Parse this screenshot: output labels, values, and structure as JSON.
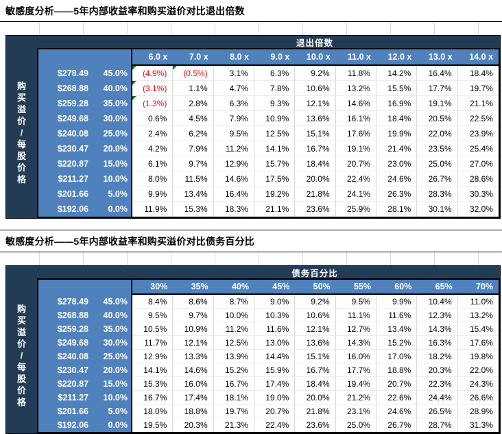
{
  "colors": {
    "navy": "#233C55",
    "blue": "#4F81BD",
    "negative_text": "#FF0000",
    "flag_green": "#1B7A1B",
    "gridline": "#D9D9D9",
    "border": "#000000"
  },
  "side_label": "购买溢价/每股价格",
  "tables": [
    {
      "title": "敏感度分析——5年内部收益率和购买溢价对比退出倍数",
      "band_label": "退出倍数",
      "col_headers": [
        "6.0 x",
        "7.0 x",
        "8.0 x",
        "9.0 x",
        "10.0 x",
        "11.0 x",
        "12.0 x",
        "13.0 x",
        "14.0 x"
      ],
      "rows": [
        {
          "price": "$278.49",
          "premium": "45.0%",
          "values": [
            "(4.9%)",
            "(0.5%)",
            "3.1%",
            "6.3%",
            "9.2%",
            "11.8%",
            "14.2%",
            "16.4%",
            "18.4%"
          ]
        },
        {
          "price": "$268.88",
          "premium": "40.0%",
          "values": [
            "(3.1%)",
            "1.1%",
            "4.7%",
            "7.8%",
            "10.6%",
            "13.2%",
            "15.5%",
            "17.7%",
            "19.7%"
          ]
        },
        {
          "price": "$259.28",
          "premium": "35.0%",
          "values": [
            "(1.3%)",
            "2.8%",
            "6.3%",
            "9.3%",
            "12.1%",
            "14.6%",
            "16.9%",
            "19.1%",
            "21.1%"
          ]
        },
        {
          "price": "$249.68",
          "premium": "30.0%",
          "values": [
            "0.6%",
            "4.5%",
            "7.9%",
            "10.9%",
            "13.6%",
            "16.1%",
            "18.4%",
            "20.5%",
            "22.5%"
          ]
        },
        {
          "price": "$240.08",
          "premium": "25.0%",
          "values": [
            "2.4%",
            "6.2%",
            "9.5%",
            "12.5%",
            "15.1%",
            "17.6%",
            "19.9%",
            "22.0%",
            "23.9%"
          ]
        },
        {
          "price": "$230.47",
          "premium": "20.0%",
          "values": [
            "4.2%",
            "7.9%",
            "11.2%",
            "14.1%",
            "16.7%",
            "19.1%",
            "21.4%",
            "23.5%",
            "25.4%"
          ]
        },
        {
          "price": "$220.87",
          "premium": "15.0%",
          "values": [
            "6.1%",
            "9.7%",
            "12.9%",
            "15.7%",
            "18.4%",
            "20.7%",
            "23.0%",
            "25.0%",
            "27.0%"
          ]
        },
        {
          "price": "$211.27",
          "premium": "10.0%",
          "values": [
            "8.0%",
            "11.5%",
            "14.6%",
            "17.5%",
            "20.0%",
            "22.4%",
            "24.6%",
            "26.7%",
            "28.6%"
          ]
        },
        {
          "price": "$201.66",
          "premium": "5.0%",
          "values": [
            "9.9%",
            "13.4%",
            "16.4%",
            "19.2%",
            "21.8%",
            "24.1%",
            "26.3%",
            "28.3%",
            "30.3%"
          ]
        },
        {
          "price": "$192.06",
          "premium": "0.0%",
          "values": [
            "11.9%",
            "15.3%",
            "18.3%",
            "21.1%",
            "23.6%",
            "25.9%",
            "28.1%",
            "30.1%",
            "32.0%"
          ]
        }
      ]
    },
    {
      "title": "敏感度分析——5年内部收益率和购买溢价对比债务百分比",
      "band_label": "债务百分比",
      "col_headers": [
        "30%",
        "35%",
        "40%",
        "45%",
        "50%",
        "55%",
        "60%",
        "65%",
        "70%"
      ],
      "rows": [
        {
          "price": "$278.49",
          "premium": "45.0%",
          "values": [
            "8.4%",
            "8.6%",
            "8.7%",
            "9.0%",
            "9.2%",
            "9.5%",
            "9.9%",
            "10.4%",
            "11.0%"
          ]
        },
        {
          "price": "$268.88",
          "premium": "40.0%",
          "values": [
            "9.5%",
            "9.7%",
            "10.0%",
            "10.3%",
            "10.6%",
            "11.1%",
            "11.6%",
            "12.3%",
            "13.2%"
          ]
        },
        {
          "price": "$259.28",
          "premium": "35.0%",
          "values": [
            "10.5%",
            "10.9%",
            "11.2%",
            "11.6%",
            "12.1%",
            "12.7%",
            "13.4%",
            "14.3%",
            "15.4%"
          ]
        },
        {
          "price": "$249.68",
          "premium": "30.0%",
          "values": [
            "11.7%",
            "12.1%",
            "12.5%",
            "13.0%",
            "13.6%",
            "14.3%",
            "15.2%",
            "16.3%",
            "17.6%"
          ]
        },
        {
          "price": "$240.08",
          "premium": "25.0%",
          "values": [
            "12.9%",
            "13.3%",
            "13.9%",
            "14.4%",
            "15.1%",
            "16.0%",
            "17.0%",
            "18.2%",
            "19.8%"
          ]
        },
        {
          "price": "$230.47",
          "premium": "20.0%",
          "values": [
            "14.1%",
            "14.6%",
            "15.2%",
            "15.9%",
            "16.7%",
            "17.7%",
            "18.8%",
            "20.3%",
            "22.0%"
          ]
        },
        {
          "price": "$220.87",
          "premium": "15.0%",
          "values": [
            "15.3%",
            "16.0%",
            "16.7%",
            "17.4%",
            "18.4%",
            "19.4%",
            "20.7%",
            "22.3%",
            "24.3%"
          ]
        },
        {
          "price": "$211.27",
          "premium": "10.0%",
          "values": [
            "16.7%",
            "17.4%",
            "18.1%",
            "19.0%",
            "20.0%",
            "21.2%",
            "22.6%",
            "24.4%",
            "26.6%"
          ]
        },
        {
          "price": "$201.66",
          "premium": "5.0%",
          "values": [
            "18.0%",
            "18.8%",
            "19.7%",
            "20.7%",
            "21.8%",
            "23.1%",
            "24.6%",
            "26.5%",
            "28.9%"
          ]
        },
        {
          "price": "$192.06",
          "premium": "0.0%",
          "values": [
            "19.5%",
            "20.3%",
            "21.3%",
            "22.4%",
            "23.6%",
            "25.0%",
            "26.7%",
            "28.7%",
            "31.3%"
          ]
        }
      ]
    }
  ]
}
